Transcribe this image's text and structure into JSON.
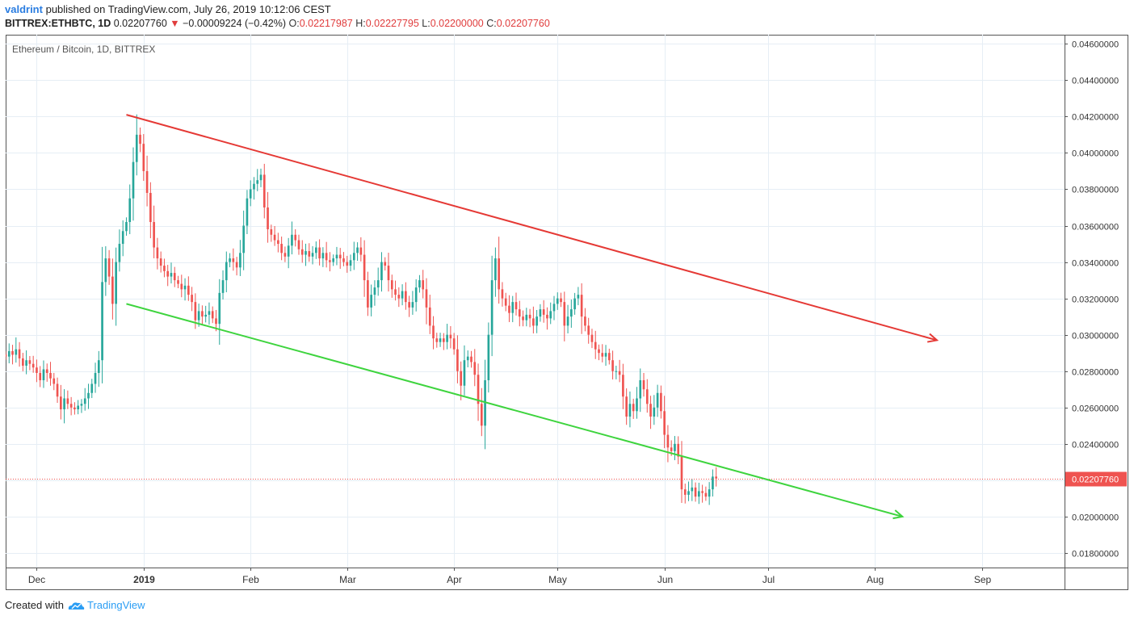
{
  "header": {
    "author": "valdrint",
    "publish_text": "published on TradingView.com, July 26, 2019 10:12:06 CEST",
    "symbol": "BITTREX:ETHBTC, 1D",
    "last_price": "0.02207760",
    "change_arrow": "▼",
    "change": "−0.00009224 (−0.42%)",
    "o_label": "O:",
    "o_value": "0.02217987",
    "h_label": "H:",
    "h_value": "0.02227795",
    "l_label": "L:",
    "l_value": "0.02200000",
    "c_label": "C:",
    "c_value": "0.02207760"
  },
  "footer": {
    "created_with": "Created with",
    "brand": "TradingView",
    "brand_color": "#2a9df4"
  },
  "chart_data": {
    "type": "candlestick",
    "title": "Ethereum / Bitcoin, 1D, BITTREX",
    "ylim": [
      0.0172,
      0.0465
    ],
    "xlim": [
      "2018-11-22",
      "2019-09-25"
    ],
    "yticks": [
      "0.04600000",
      "0.04400000",
      "0.04200000",
      "0.04000000",
      "0.03800000",
      "0.03600000",
      "0.03400000",
      "0.03200000",
      "0.03000000",
      "0.02800000",
      "0.02600000",
      "0.02400000",
      "0.02200000",
      "0.02000000",
      "0.01800000"
    ],
    "xticks": [
      {
        "label": "Dec",
        "date": "2018-12-01",
        "bold": false
      },
      {
        "label": "2019",
        "date": "2019-01-01",
        "bold": true
      },
      {
        "label": "Feb",
        "date": "2019-02-01",
        "bold": false
      },
      {
        "label": "Mar",
        "date": "2019-03-01",
        "bold": false
      },
      {
        "label": "Apr",
        "date": "2019-04-01",
        "bold": false
      },
      {
        "label": "May",
        "date": "2019-05-01",
        "bold": false
      },
      {
        "label": "Jun",
        "date": "2019-06-01",
        "bold": false
      },
      {
        "label": "Jul",
        "date": "2019-07-01",
        "bold": false
      },
      {
        "label": "Aug",
        "date": "2019-08-01",
        "bold": false
      },
      {
        "label": "Sep",
        "date": "2019-09-01",
        "bold": false
      }
    ],
    "start_date": "2018-11-22",
    "closes": [
      0.0288,
      0.0291,
      0.0289,
      0.0292,
      0.0287,
      0.0283,
      0.0286,
      0.0284,
      0.0282,
      0.0279,
      0.0275,
      0.0281,
      0.0279,
      0.0276,
      0.0273,
      0.0266,
      0.0259,
      0.0265,
      0.0262,
      0.026,
      0.0259,
      0.0261,
      0.0262,
      0.0265,
      0.0268,
      0.0273,
      0.0279,
      0.0286,
      0.0329,
      0.0342,
      0.0332,
      0.0317,
      0.034,
      0.035,
      0.0357,
      0.0362,
      0.0375,
      0.0395,
      0.041,
      0.0405,
      0.039,
      0.0378,
      0.0362,
      0.0348,
      0.0342,
      0.0338,
      0.0335,
      0.0332,
      0.0334,
      0.033,
      0.0328,
      0.0325,
      0.0327,
      0.0322,
      0.0318,
      0.0308,
      0.0313,
      0.031,
      0.0311,
      0.0313,
      0.0309,
      0.0306,
      0.0323,
      0.033,
      0.034,
      0.0342,
      0.034,
      0.0337,
      0.0345,
      0.036,
      0.0375,
      0.038,
      0.0383,
      0.0385,
      0.0388,
      0.037,
      0.0358,
      0.0355,
      0.0352,
      0.035,
      0.0345,
      0.0343,
      0.0349,
      0.0355,
      0.0352,
      0.0347,
      0.0344,
      0.0346,
      0.0343,
      0.0345,
      0.0348,
      0.0342,
      0.0345,
      0.0341,
      0.034,
      0.0342,
      0.0344,
      0.0342,
      0.034,
      0.0338,
      0.0341,
      0.0345,
      0.0348,
      0.0344,
      0.033,
      0.0315,
      0.0322,
      0.0326,
      0.033,
      0.034,
      0.0338,
      0.033,
      0.0325,
      0.0322,
      0.032,
      0.0324,
      0.0318,
      0.0315,
      0.0318,
      0.0326,
      0.033,
      0.0325,
      0.0315,
      0.0305,
      0.0298,
      0.0296,
      0.0298,
      0.0296,
      0.03,
      0.0298,
      0.0292,
      0.028,
      0.0272,
      0.0286,
      0.0288,
      0.0285,
      0.0278,
      0.0262,
      0.025,
      0.0275,
      0.03,
      0.033,
      0.0342,
      0.0325,
      0.032,
      0.0316,
      0.0312,
      0.0318,
      0.0314,
      0.031,
      0.0308,
      0.0311,
      0.0309,
      0.0305,
      0.031,
      0.0314,
      0.0311,
      0.0309,
      0.0313,
      0.0317,
      0.032,
      0.0318,
      0.0305,
      0.031,
      0.0314,
      0.032,
      0.0322,
      0.031,
      0.0305,
      0.03,
      0.0296,
      0.0292,
      0.029,
      0.0288,
      0.029,
      0.0286,
      0.028,
      0.028,
      0.0278,
      0.0266,
      0.0255,
      0.0262,
      0.0258,
      0.0265,
      0.0275,
      0.027,
      0.0262,
      0.0255,
      0.026,
      0.0268,
      0.0258,
      0.0245,
      0.0238,
      0.0236,
      0.024,
      0.0233,
      0.0215,
      0.0212,
      0.0214,
      0.0216,
      0.0211,
      0.0214,
      0.0213,
      0.0211,
      0.0215,
      0.0222,
      0.0221
    ],
    "last_price": 0.0220776,
    "last_price_label": "0.02207760",
    "channel_upper": {
      "from": [
        "2018-12-27",
        0.0421
      ],
      "to": [
        "2019-08-19",
        0.0297
      ],
      "color": "#e53935"
    },
    "channel_lower": {
      "from": [
        "2018-12-27",
        0.0317
      ],
      "to": [
        "2019-08-09",
        0.02
      ],
      "color": "#3ed43e"
    },
    "up_color": "#26a69a",
    "down_color": "#ef5350",
    "grid": true,
    "legend_position": "top-left"
  }
}
